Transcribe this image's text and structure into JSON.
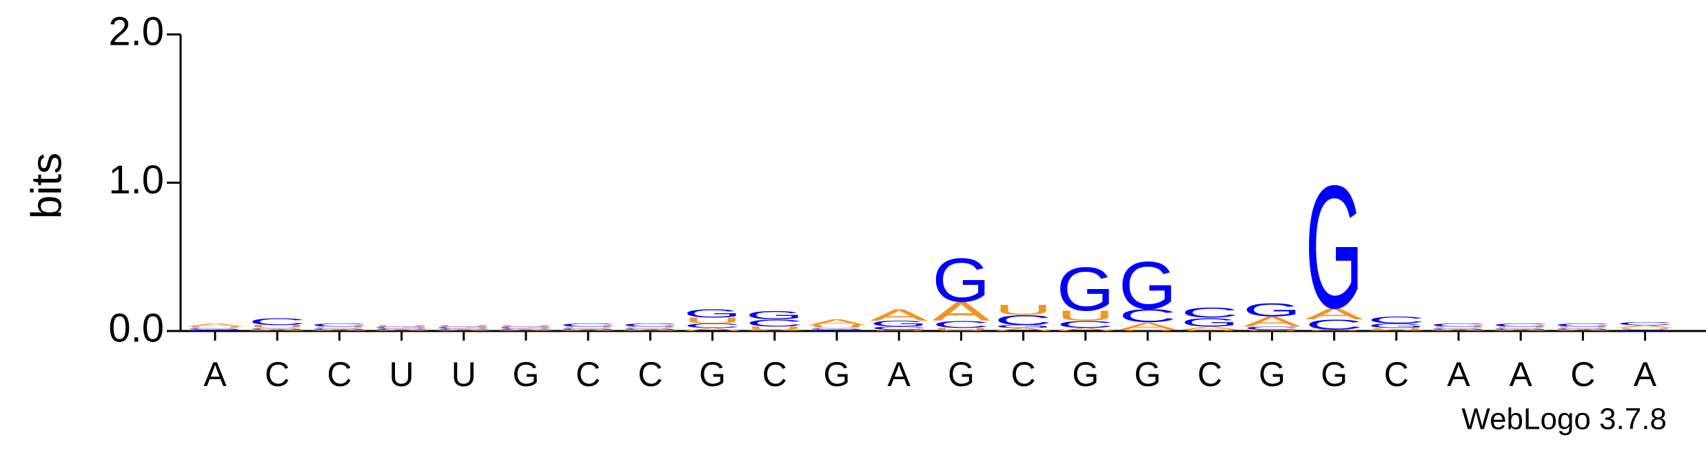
{
  "chart_data": {
    "type": "logo",
    "ylabel": "bits",
    "ylim": [
      0,
      2
    ],
    "yticks": [
      {
        "value": 0,
        "label": "0.0"
      },
      {
        "value": 1,
        "label": "1.0"
      },
      {
        "value": 2,
        "label": "2.0"
      }
    ],
    "categories": [
      "A",
      "C",
      "C",
      "U",
      "U",
      "G",
      "C",
      "C",
      "G",
      "C",
      "G",
      "A",
      "G",
      "C",
      "G",
      "G",
      "C",
      "G",
      "G",
      "C",
      "A",
      "A",
      "C",
      "A"
    ],
    "series": [
      {
        "name": "A",
        "color": "#f7931e",
        "values": [
          0.02,
          0.01,
          0.01,
          0.01,
          0.01,
          0.01,
          0.01,
          0.01,
          0.02,
          0.01,
          0.04,
          0.08,
          0.13,
          0.02,
          0.02,
          0.05,
          0.02,
          0.07,
          0.08,
          0.01,
          0.01,
          0.01,
          0.01,
          0.02
        ]
      },
      {
        "name": "C",
        "color": "#0000ff",
        "values": [
          0.01,
          0.05,
          0.02,
          0.01,
          0.01,
          0.01,
          0.02,
          0.02,
          0.03,
          0.05,
          0.01,
          0.02,
          0.05,
          0.07,
          0.05,
          0.09,
          0.07,
          0.02,
          0.07,
          0.05,
          0.02,
          0.02,
          0.02,
          0.02
        ]
      },
      {
        "name": "G",
        "color": "#0000ff",
        "values": [
          0.01,
          0.01,
          0.01,
          0.01,
          0.01,
          0.01,
          0.01,
          0.01,
          0.06,
          0.06,
          0.01,
          0.04,
          0.3,
          0.02,
          0.3,
          0.33,
          0.06,
          0.09,
          0.85,
          0.03,
          0.01,
          0.01,
          0.01,
          0.01
        ]
      },
      {
        "name": "U",
        "color": "#f7931e",
        "values": [
          0.01,
          0.02,
          0.01,
          0.01,
          0.01,
          0.01,
          0.01,
          0.01,
          0.04,
          0.02,
          0.02,
          0.01,
          0.02,
          0.07,
          0.07,
          0.01,
          0.01,
          0.01,
          0.01,
          0.01,
          0.01,
          0.01,
          0.01,
          0.01
        ]
      }
    ],
    "credit": "WebLogo 3.7.8"
  }
}
